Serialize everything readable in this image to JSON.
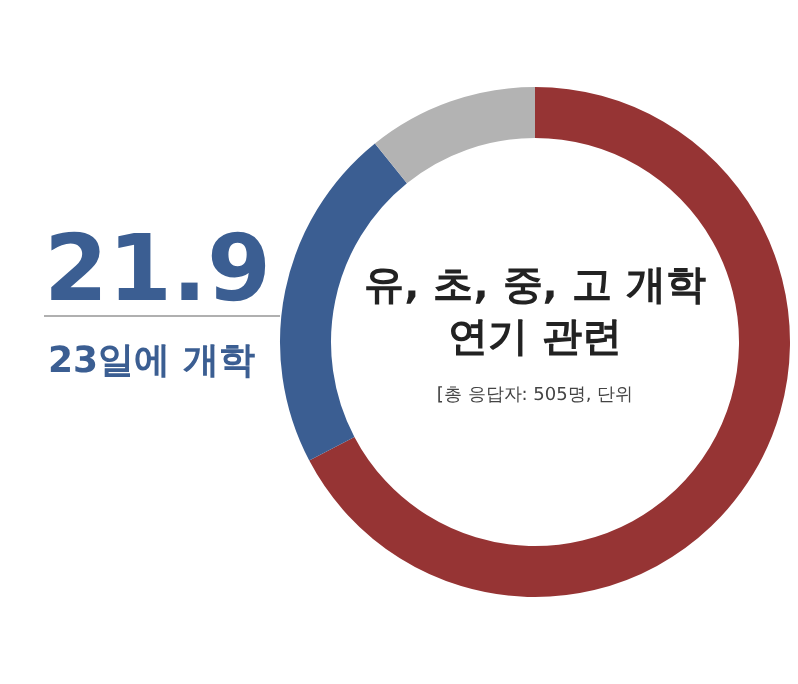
{
  "chart_data": {
    "type": "donut",
    "title": "유, 초, 중, 고 개학 연기 관련",
    "subtitle": "[총 응답자: 505명, 단위",
    "categories": [
      null,
      "23일에 개학",
      null
    ],
    "values": [
      67.3,
      21.9,
      10.8
    ],
    "colors": [
      "#963434",
      "#3b5e92",
      "#b3b3b3"
    ],
    "value_labels": [
      null,
      "21.9",
      null
    ],
    "legend": false
  }
}
